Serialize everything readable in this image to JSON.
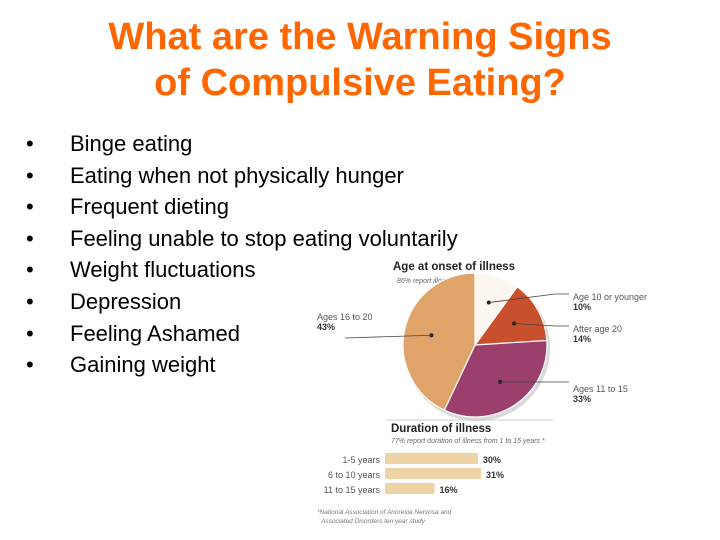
{
  "slide": {
    "title_line1": "What are the Warning Signs",
    "title_line2": "of Compulsive Eating?",
    "bullet_char": "•",
    "bullets": [
      "Binge eating",
      "Eating when not physically hunger",
      "Frequent dieting",
      "Feeling unable to stop eating voluntarily",
      "Weight fluctuations",
      "Depression",
      "Feeling Ashamed",
      "Gaining weight"
    ],
    "accent_color": "#ff6600"
  },
  "infographic": {
    "onset": {
      "heading": "Age at onset of illness",
      "subheading": "86% report illness by age",
      "slices": [
        {
          "label": "Age 10 or younger",
          "value": 10,
          "value_text": "10%",
          "color": "#fbf6ee"
        },
        {
          "label": "After age 20",
          "value": 14,
          "value_text": "14%",
          "color": "#c8502c"
        },
        {
          "label": "Ages 11 to 15",
          "value": 33,
          "value_text": "33%",
          "color": "#9b3f6d"
        },
        {
          "label": "Ages 16 to 20",
          "value": 43,
          "value_text": "43%",
          "color": "#e0a36a"
        }
      ]
    },
    "duration": {
      "heading": "Duration of illness",
      "subheading": "77% report duration of illness from 1 to 15 years *",
      "bar_color": "#edd3a6",
      "bars": [
        {
          "label": "1-5 years",
          "value": 30,
          "value_text": "30%"
        },
        {
          "label": "6 to 10 years",
          "value": 31,
          "value_text": "31%"
        },
        {
          "label": "11 to 15 years",
          "value": 16,
          "value_text": "16%"
        }
      ],
      "footnote_line1": "*National Association of Anorexia Nervosa and",
      "footnote_line2": "Associated Disorders ten year study"
    }
  }
}
